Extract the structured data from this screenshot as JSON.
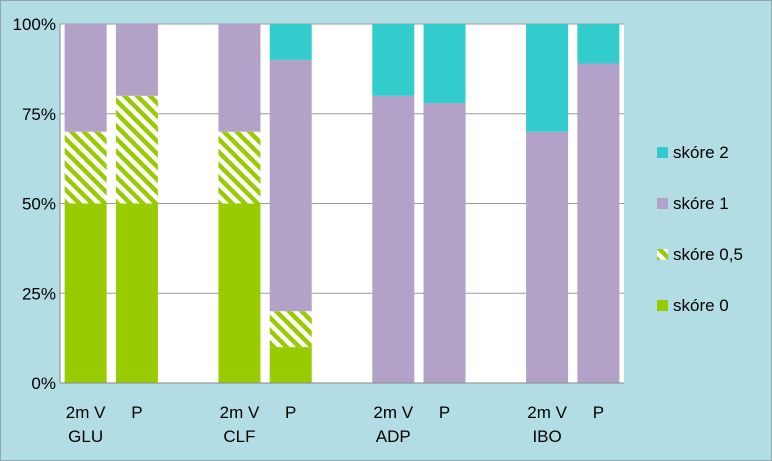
{
  "chart_data": {
    "type": "bar",
    "stacked": true,
    "percent": true,
    "x": [
      "2m V",
      "P",
      "",
      "2m V",
      "P",
      "",
      "2m V",
      "P",
      "",
      "2m V",
      "P"
    ],
    "groups": [
      "GLU",
      "",
      "",
      "CLF",
      "",
      "",
      "ADP",
      "",
      "",
      "IBO",
      ""
    ],
    "series": [
      {
        "name": "skóre 0",
        "values": [
          50,
          50,
          0,
          50,
          10,
          0,
          0,
          0,
          0,
          0,
          0
        ]
      },
      {
        "name": "skóre 0,5",
        "values": [
          20,
          30,
          0,
          20,
          10,
          0,
          0,
          0,
          0,
          0,
          0
        ]
      },
      {
        "name": "skóre 1",
        "values": [
          30,
          20,
          0,
          30,
          70,
          0,
          80,
          78,
          0,
          70,
          89
        ]
      },
      {
        "name": "skóre 2",
        "values": [
          0,
          0,
          0,
          0,
          10,
          0,
          20,
          22,
          0,
          30,
          11
        ]
      }
    ],
    "ylim": [
      0,
      100
    ],
    "yticks": [
      "0%",
      "25%",
      "50%",
      "75%",
      "100%"
    ],
    "grid": true,
    "legend": "right",
    "legend_order": [
      "skóre 2",
      "skóre 1",
      "skóre 0,5",
      "skóre 0"
    ],
    "colors": {
      "skóre 0": "#99cc00",
      "skóre 0,5": "#99cc00",
      "skóre 1": "#b3a2c7",
      "skóre 2": "#33cccc"
    },
    "patterns": {
      "skóre 0,5": "diagonal-hatch"
    },
    "plot_background": "#ffffff",
    "chart_background": "#b3dde4"
  }
}
